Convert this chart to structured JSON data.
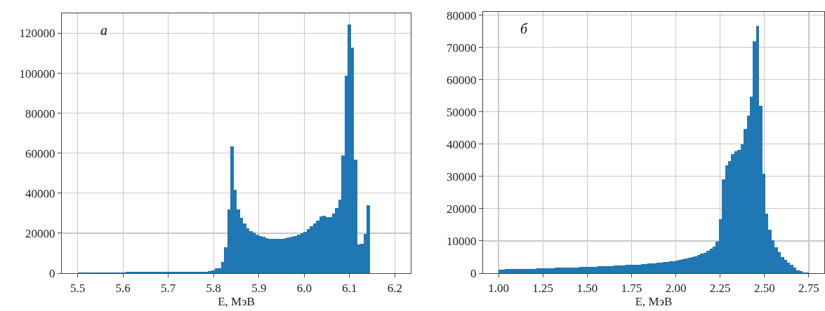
{
  "chart_data": [
    {
      "type": "histogram",
      "title": "а",
      "xlabel": "E, МэВ",
      "color": "#1f77b4",
      "grid": true,
      "bins": [
        5.501,
        5.508,
        5.515,
        5.522,
        5.529,
        5.536,
        5.543,
        5.55,
        5.557,
        5.564,
        5.571,
        5.578,
        5.585,
        5.592,
        5.599,
        5.606,
        5.613,
        5.62,
        5.627,
        5.634,
        5.641,
        5.648,
        5.655,
        5.662,
        5.669,
        5.676,
        5.683,
        5.69,
        5.697,
        5.704,
        5.711,
        5.718,
        5.725,
        5.732,
        5.739,
        5.746,
        5.753,
        5.76,
        5.767,
        5.774,
        5.781,
        5.788,
        5.795,
        5.802,
        5.809,
        5.816,
        5.823,
        5.83,
        5.837,
        5.844,
        5.851,
        5.858,
        5.865,
        5.872,
        5.879,
        5.886,
        5.893,
        5.9,
        5.907,
        5.914,
        5.921,
        5.928,
        5.935,
        5.942,
        5.949,
        5.956,
        5.963,
        5.97,
        5.977,
        5.984,
        5.991,
        5.998,
        6.005,
        6.012,
        6.019,
        6.026,
        6.033,
        6.04,
        6.047,
        6.054,
        6.061,
        6.068,
        6.075,
        6.082,
        6.089,
        6.096,
        6.103,
        6.11,
        6.117,
        6.124,
        6.131,
        6.138,
        6.145
      ],
      "values": [
        500,
        500,
        500,
        500,
        500,
        500,
        500,
        500,
        500,
        500,
        500,
        500,
        500,
        500,
        500,
        800,
        800,
        800,
        800,
        800,
        800,
        800,
        800,
        800,
        800,
        800,
        800,
        800,
        800,
        800,
        800,
        800,
        800,
        800,
        800,
        800,
        800,
        800,
        800,
        800,
        800,
        1200,
        1500,
        2500,
        2500,
        5700,
        13000,
        31800,
        63500,
        41700,
        32000,
        27600,
        24800,
        22600,
        21200,
        20200,
        19300,
        18700,
        18100,
        17600,
        17300,
        17100,
        17000,
        17100,
        17300,
        17500,
        17800,
        18100,
        18700,
        19300,
        20000,
        20800,
        22000,
        23600,
        24800,
        26400,
        28300,
        28800,
        28000,
        28200,
        29800,
        32700,
        36900,
        58800,
        98800,
        124500,
        112700,
        56900,
        14300,
        14600,
        19500,
        34000
      ],
      "xlim": [
        5.465,
        6.235
      ],
      "ylim": [
        0,
        130000
      ],
      "xticks": [
        5.5,
        5.6,
        5.7,
        5.8,
        5.9,
        {
          "value": 6,
          "label": "6.0"
        },
        6.1,
        6.2
      ],
      "yticks": [
        0,
        20000,
        40000,
        60000,
        80000,
        100000,
        120000
      ]
    },
    {
      "type": "histogram",
      "title": "б",
      "xlabel": "E, МэВ",
      "color": "#1f77b4",
      "grid": true,
      "bins": [
        1,
        1.0175,
        1.035,
        1.0525,
        1.07,
        1.0875,
        1.105,
        1.1225,
        1.14,
        1.1575,
        1.175,
        1.1925,
        1.21,
        1.2275,
        1.245,
        1.2625,
        1.28,
        1.2975,
        1.315,
        1.3325,
        1.35,
        1.3675,
        1.385,
        1.4025,
        1.42,
        1.4375,
        1.455,
        1.4725,
        1.49,
        1.5075,
        1.525,
        1.5425,
        1.56,
        1.5775,
        1.595,
        1.6125,
        1.63,
        1.6475,
        1.665,
        1.6825,
        1.7,
        1.7175,
        1.735,
        1.7525,
        1.77,
        1.7875,
        1.805,
        1.8225,
        1.84,
        1.8575,
        1.875,
        1.8925,
        1.91,
        1.9275,
        1.945,
        1.9625,
        1.98,
        1.9975,
        2.015,
        2.0325,
        2.05,
        2.0675,
        2.085,
        2.1025,
        2.12,
        2.1375,
        2.155,
        2.1725,
        2.19,
        2.2075,
        2.225,
        2.2425,
        2.26,
        2.2775,
        2.295,
        2.3125,
        2.33,
        2.3475,
        2.365,
        2.3825,
        2.4,
        2.4175,
        2.435,
        2.4525,
        2.47,
        2.4875,
        2.505,
        2.5225,
        2.54,
        2.5575,
        2.575,
        2.5925,
        2.61,
        2.6275,
        2.645,
        2.6625,
        2.68,
        2.6975,
        2.715,
        2.7325,
        2.75
      ],
      "values": [
        1100,
        1150,
        1200,
        1300,
        1250,
        1200,
        1250,
        1300,
        1300,
        1350,
        1350,
        1400,
        1450,
        1500,
        1550,
        1550,
        1600,
        1600,
        1650,
        1650,
        1700,
        1700,
        1750,
        1750,
        1800,
        1800,
        1850,
        1900,
        1950,
        2000,
        2000,
        2050,
        2100,
        2150,
        2200,
        2200,
        2250,
        2300,
        2350,
        2400,
        2450,
        2500,
        2550,
        2600,
        2650,
        2700,
        2800,
        2850,
        2950,
        3000,
        3100,
        3200,
        3300,
        3400,
        3500,
        3650,
        3800,
        3950,
        4150,
        4350,
        4550,
        4800,
        5050,
        5300,
        5700,
        6000,
        6400,
        6900,
        7500,
        8200,
        9800,
        16800,
        29000,
        33500,
        34800,
        37000,
        37800,
        38300,
        39900,
        44800,
        48800,
        54700,
        71900,
        76700,
        52000,
        30800,
        18500,
        13400,
        10100,
        8000,
        6500,
        5100,
        4100,
        3300,
        2500,
        1800,
        900,
        600,
        300,
        150
      ],
      "xlim": [
        0.9125,
        2.8375
      ],
      "ylim": [
        0,
        81000
      ],
      "xticks": [
        {
          "value": 1,
          "label": "1.00"
        },
        {
          "value": 1.25,
          "label": "1.25"
        },
        {
          "value": 1.5,
          "label": "1.50"
        },
        {
          "value": 1.75,
          "label": "1.75"
        },
        {
          "value": 2,
          "label": "2.00"
        },
        {
          "value": 2.25,
          "label": "2.25"
        },
        {
          "value": 2.5,
          "label": "2.50"
        },
        {
          "value": 2.75,
          "label": "2.75"
        }
      ],
      "yticks": [
        0,
        10000,
        20000,
        30000,
        40000,
        50000,
        60000,
        70000,
        80000
      ]
    }
  ]
}
